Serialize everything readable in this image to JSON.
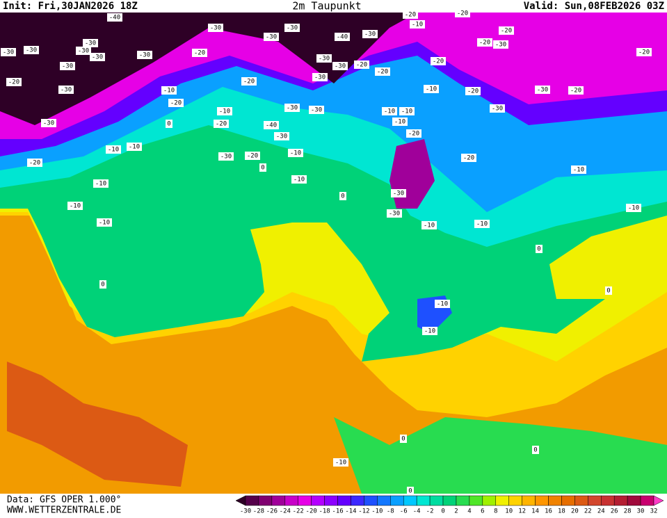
{
  "header": {
    "init": "Init: Fri,30JAN2026 18Z",
    "title": "2m Taupunkt",
    "valid": "Valid: Sun,08FEB2026 03Z"
  },
  "footer": {
    "data": "Data: GFS OPER 1.000°",
    "url": "WWW.WETTERZENTRALE.DE"
  },
  "colorbar": {
    "ticks": [
      -30,
      -28,
      -26,
      -24,
      -22,
      -20,
      -18,
      -16,
      -14,
      -12,
      -10,
      -8,
      -6,
      -4,
      -2,
      0,
      2,
      4,
      6,
      8,
      10,
      12,
      14,
      16,
      18,
      20,
      22,
      24,
      26,
      28,
      30,
      32
    ],
    "colors": [
      "#2e0026",
      "#55004a",
      "#800070",
      "#a0009a",
      "#c800c8",
      "#e600e6",
      "#b400ff",
      "#8c00ff",
      "#6400ff",
      "#3c28ff",
      "#1e50ff",
      "#1478ff",
      "#0aa0ff",
      "#00c8ff",
      "#00e6d2",
      "#00dca0",
      "#00d278",
      "#28dc50",
      "#50e628",
      "#a0f000",
      "#f0f000",
      "#ffd200",
      "#ffb400",
      "#ff9600",
      "#f08200",
      "#e66e00",
      "#dc5a14",
      "#d2462d",
      "#c83232",
      "#b41e32",
      "#a00a3c",
      "#c8006e",
      "#ff3cc8"
    ]
  },
  "contour_labels": [
    -40,
    -30,
    -30,
    -30,
    -30,
    -30,
    -30,
    -30,
    -20,
    -30,
    -20,
    -30,
    -30,
    -30,
    -40,
    -30,
    -30,
    -30,
    -30,
    -20,
    -10,
    -20,
    -10,
    -20,
    -30,
    -30,
    -40,
    -30,
    -30,
    -20,
    -10,
    0,
    -10,
    -10,
    -10,
    -20,
    -10,
    -10,
    -10,
    0,
    0,
    0,
    -30,
    -30,
    -10,
    -10,
    -10,
    -10,
    -10,
    -20,
    -10,
    -20,
    -20,
    -20,
    -20,
    -30,
    -30,
    -20,
    -20,
    -30,
    -20,
    -10,
    -10,
    0,
    0,
    -10,
    -10,
    0,
    0,
    -10,
    0,
    -20,
    -20,
    -10,
    -20,
    -20,
    -30
  ]
}
